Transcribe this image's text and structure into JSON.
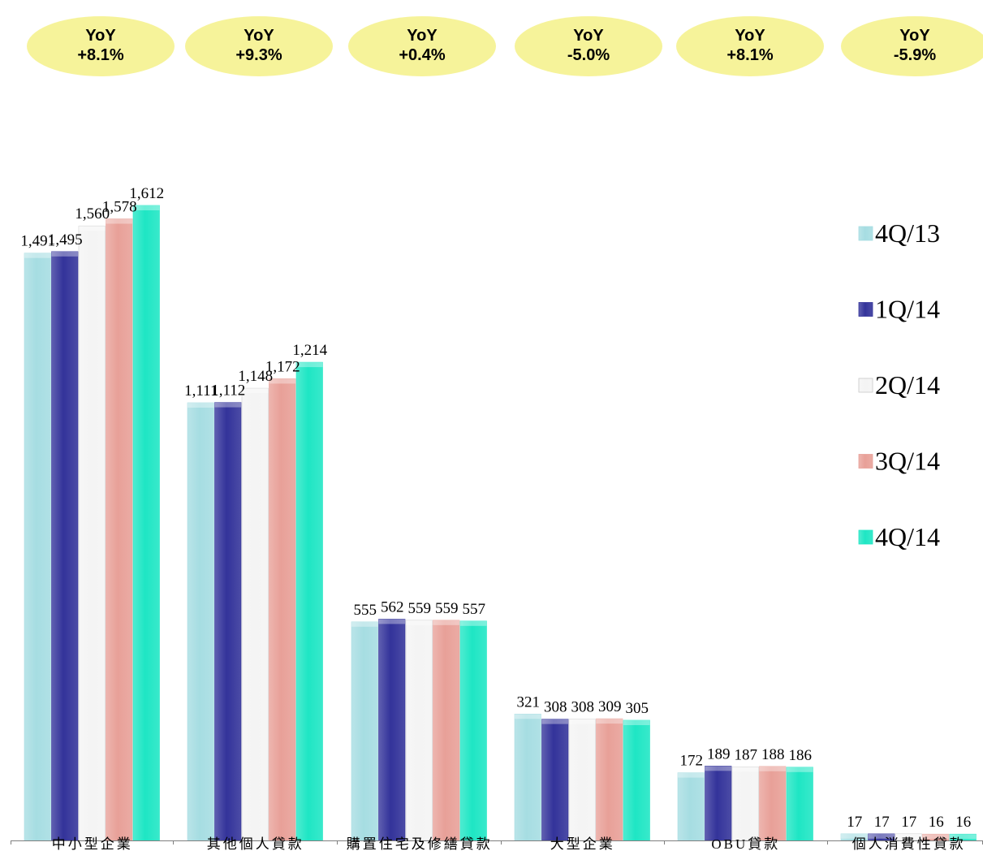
{
  "yoy_badges": [
    {
      "label": "YoY",
      "value": "+8.1%"
    },
    {
      "label": "YoY",
      "value": "+9.3%"
    },
    {
      "label": "YoY",
      "value": "+0.4%"
    },
    {
      "label": "YoY",
      "value": "-5.0%"
    },
    {
      "label": "YoY",
      "value": "+8.1%"
    },
    {
      "label": "YoY",
      "value": "-5.9%"
    }
  ],
  "colors": {
    "badge": "#f6f39a",
    "4Q/13": "#a6dde2",
    "1Q/14": "#33339a",
    "2Q/14": "#f4f4f4",
    "3Q/14": "#e8a098",
    "4Q/14": "#1ee6c4"
  },
  "chart_data": {
    "type": "bar",
    "title": "",
    "xlabel": "",
    "ylabel": "",
    "ylim": [
      0,
      1900
    ],
    "grid": false,
    "legend_position": "right",
    "categories": [
      "中小型企業",
      "其他個人貸款",
      "購置住宅及修繕貸款",
      "大型企業",
      "OBU貸款",
      "個人消費性貸款"
    ],
    "series": [
      {
        "name": "4Q/13",
        "values": [
          1491,
          1111,
          555,
          321,
          172,
          17
        ],
        "labels": [
          "1,491",
          "1,111",
          "555",
          "321",
          "172",
          "17"
        ]
      },
      {
        "name": "1Q/14",
        "values": [
          1495,
          1112,
          562,
          308,
          189,
          17
        ],
        "labels": [
          "1,495",
          "1,112",
          "562",
          "308",
          "189",
          "17"
        ]
      },
      {
        "name": "2Q/14",
        "values": [
          1560,
          1148,
          559,
          308,
          187,
          17
        ],
        "labels": [
          "1,560",
          "1,148",
          "559",
          "308",
          "187",
          "17"
        ]
      },
      {
        "name": "3Q/14",
        "values": [
          1578,
          1172,
          559,
          309,
          188,
          16
        ],
        "labels": [
          "1,578",
          "1,172",
          "559",
          "309",
          "188",
          "16"
        ]
      },
      {
        "name": "4Q/14",
        "values": [
          1612,
          1214,
          557,
          305,
          186,
          16
        ],
        "labels": [
          "1,612",
          "1,214",
          "557",
          "305",
          "186",
          "16"
        ]
      }
    ]
  }
}
